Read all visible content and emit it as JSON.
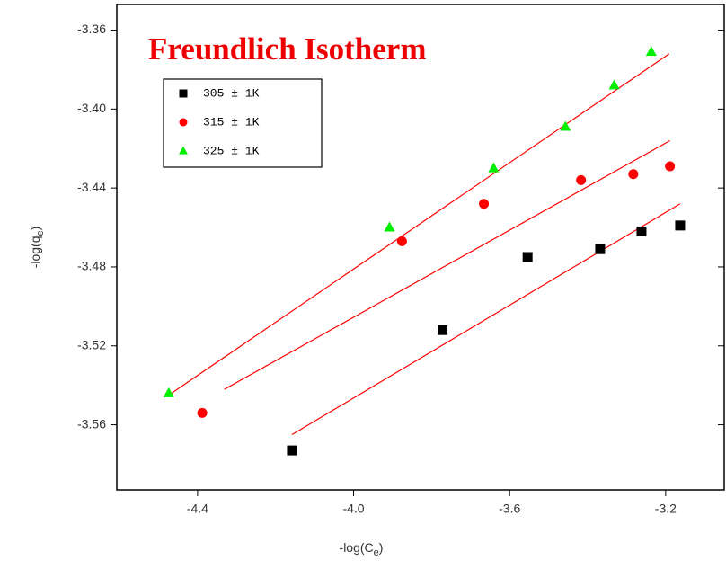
{
  "chart_data": {
    "type": "scatter",
    "title": "Freundlich Isotherm",
    "xlabel": [
      "-log(C",
      "e",
      ")"
    ],
    "ylabel": [
      "-log(q",
      "e",
      ")"
    ],
    "xlim": [
      -4.607,
      -3.05
    ],
    "ylim": [
      -3.593,
      -3.347
    ],
    "xticks": [
      -4.4,
      {
        "value": -4,
        "label": "-4.0"
      },
      -3.6,
      -3.2
    ],
    "yticks": [
      -3.36,
      {
        "value": -3.4,
        "label": "-3.40"
      },
      -3.44,
      -3.48,
      -3.52,
      -3.56
    ],
    "series": [
      {
        "name": "305 ± 1K",
        "color": "#000000",
        "marker": "square",
        "x": [
          -4.158,
          -3.772,
          -3.554,
          -3.368,
          -3.262,
          -3.163
        ],
        "values": [
          -3.573,
          -3.512,
          -3.475,
          -3.471,
          -3.462,
          -3.459
        ]
      },
      {
        "name": "315 ± 1K",
        "color": "#ff0000",
        "marker": "circle",
        "x": [
          -4.388,
          -3.876,
          -3.666,
          -3.417,
          -3.283,
          -3.189
        ],
        "values": [
          -3.554,
          -3.467,
          -3.448,
          -3.436,
          -3.433,
          -3.429
        ]
      },
      {
        "name": "325 ± 1K",
        "color": "#00ee00",
        "marker": "triangle",
        "x": [
          -4.474,
          -3.908,
          -3.641,
          -3.457,
          -3.332,
          -3.237
        ],
        "values": [
          -3.544,
          -3.46,
          -3.43,
          -3.409,
          -3.388,
          -3.371
        ]
      }
    ],
    "fits": [
      {
        "color": "#ff0000",
        "x": [
          -4.158,
          -3.163
        ],
        "values": [
          -3.565,
          -3.448
        ]
      },
      {
        "color": "#ff0000",
        "x": [
          -4.331,
          -3.189
        ],
        "values": [
          -3.542,
          -3.416
        ]
      },
      {
        "color": "#ff0000",
        "x": [
          -4.474,
          -3.191
        ],
        "values": [
          -3.545,
          -3.372
        ]
      }
    ]
  }
}
